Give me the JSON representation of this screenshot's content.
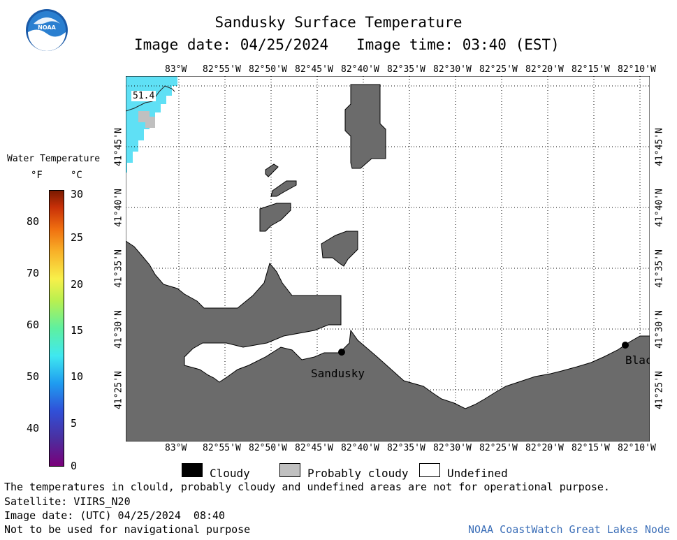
{
  "header": {
    "title": "Sandusky Surface Temperature",
    "image_date": "Image date: 04/25/2024",
    "image_time": "Image time: 03:40 (EST)"
  },
  "logo": {
    "text": "NOAA"
  },
  "colorbar": {
    "title": "Water Temperature",
    "unit_f": "°F",
    "unit_c": "°C",
    "f_ticks": [
      "80",
      "70",
      "60",
      "50",
      "40"
    ],
    "c_ticks": [
      "30",
      "25",
      "20",
      "15",
      "10",
      "5",
      "0"
    ]
  },
  "map": {
    "lon_labels": [
      "83°W",
      "82°55'W",
      "82°50'W",
      "82°45'W",
      "82°40'W",
      "82°35'W",
      "82°30'W",
      "82°25'W",
      "82°20'W",
      "82°15'W",
      "82°10'W"
    ],
    "lat_labels": [
      "41°45'N",
      "41°40'N",
      "41°35'N",
      "41°30'N",
      "41°25'N"
    ],
    "temp_label": "51.4",
    "city_sandusky": "Sandusky",
    "city_blac": "Blac"
  },
  "legend": {
    "cloudy": "Cloudy",
    "probably_cloudy": "Probably cloudy",
    "undefined": "Undefined"
  },
  "footer": {
    "note": "The temperatures in clould, probably cloudy and undefined areas are not for operational purpose.",
    "satellite": "Satellite: VIIRS_N20",
    "utc_date": "Image date: (UTC) 04/25/2024  08:40",
    "nav_warning": "Not to be used for navigational purpose",
    "credit": "NOAA CoastWatch Great Lakes Node"
  },
  "colors": {
    "land": "#6b6b6b",
    "water_cyan": "#5fe0f5",
    "probably_cloudy": "#c0c0c0",
    "credit_blue": "#3c6fb8"
  }
}
